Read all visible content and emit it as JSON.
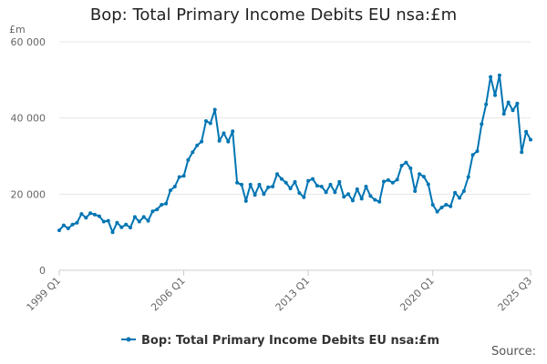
{
  "page": {
    "title": "Bop: Total Primary Income Debits EU nsa:£m",
    "source_label": "Source:"
  },
  "colors": {
    "series": "#0075b3",
    "grid": "#e6e6e6",
    "axis": "#cccccc",
    "text": "#666666"
  },
  "chart_data": {
    "type": "line",
    "title": "Bop: Total Primary Income Debits EU nsa:£m",
    "ylabel": "£m",
    "ylim": [
      0,
      60000
    ],
    "y_ticks": [
      0,
      20000,
      40000,
      60000
    ],
    "y_tick_labels": [
      "0",
      "20 000",
      "40 000",
      "60 000"
    ],
    "x_tick_labels": [
      "1999 Q1",
      "2006 Q1",
      "2013 Q1",
      "2020 Q1",
      "2025 Q3"
    ],
    "x_tick_index": [
      0,
      28,
      56,
      84,
      106
    ],
    "legend_position": "bottom",
    "grid": true,
    "series": [
      {
        "name": "Bop: Total Primary Income Debits EU nsa:£m",
        "values": [
          10500,
          11800,
          11000,
          12000,
          12500,
          14800,
          13800,
          15000,
          14600,
          14200,
          12800,
          13000,
          10000,
          12500,
          11300,
          12000,
          11200,
          14000,
          12800,
          14000,
          13000,
          15500,
          16000,
          17200,
          17500,
          21000,
          22000,
          24500,
          24800,
          29000,
          31000,
          32800,
          33800,
          39200,
          38600,
          42200,
          34000,
          36000,
          33800,
          36500,
          23000,
          22500,
          18200,
          22500,
          19800,
          22500,
          20000,
          21800,
          22000,
          25300,
          24000,
          23000,
          21500,
          23200,
          20300,
          19200,
          23500,
          24000,
          22200,
          22000,
          20500,
          22500,
          20500,
          23200,
          19300,
          20000,
          18300,
          21300,
          18800,
          22000,
          19500,
          18500,
          18000,
          23300,
          23700,
          23000,
          23800,
          27500,
          28300,
          26800,
          20800,
          25300,
          24600,
          22600,
          17200,
          15400,
          16500,
          17200,
          16800,
          20400,
          19000,
          20800,
          24500,
          30300,
          31300,
          38400,
          43600,
          50800,
          46000,
          51200,
          41100,
          44100,
          42000,
          43800,
          31000,
          36400,
          34300
        ]
      }
    ]
  }
}
